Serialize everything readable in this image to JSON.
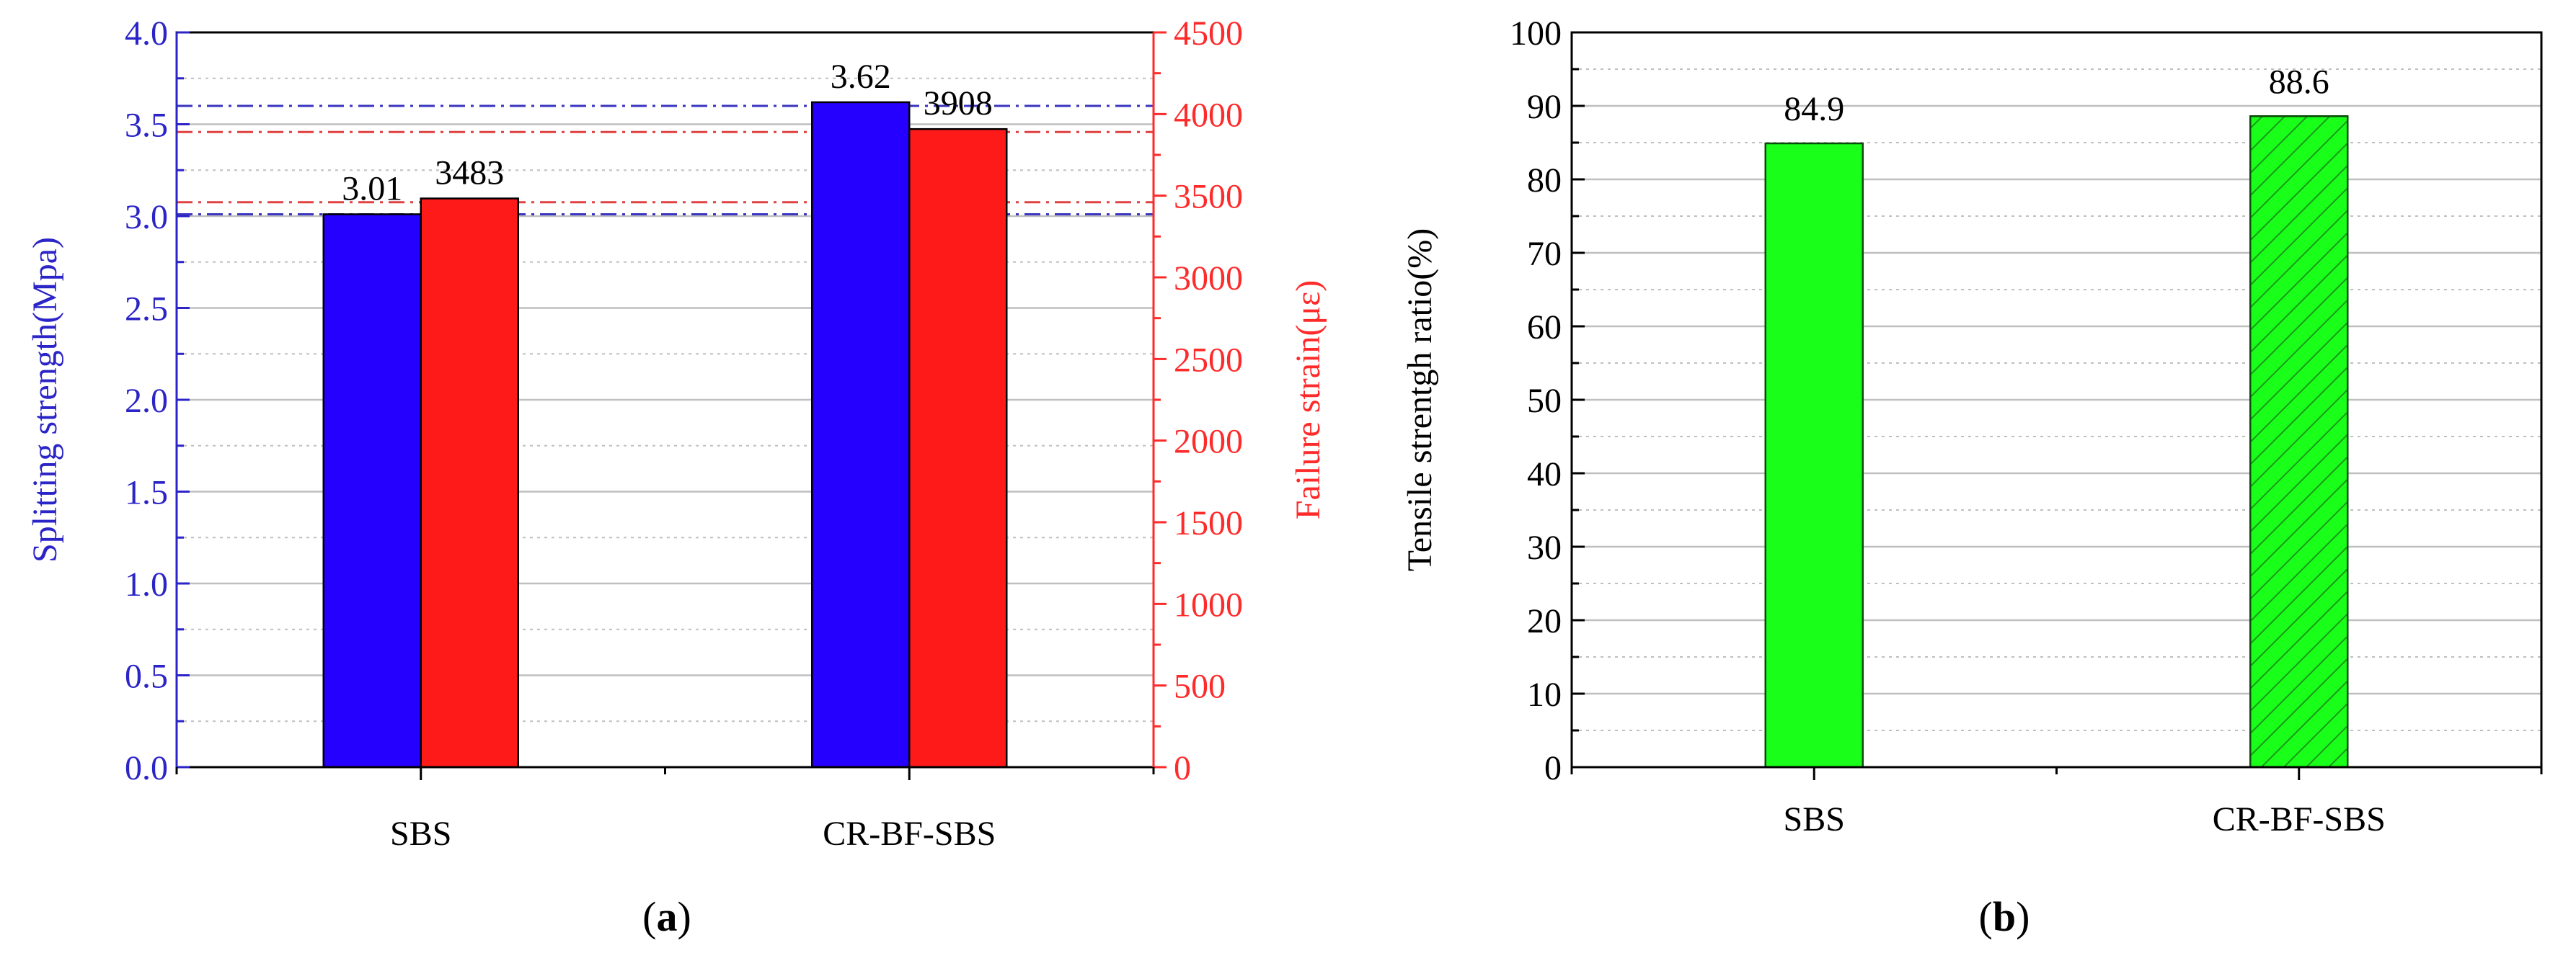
{
  "panels": [
    {
      "caption_open": "(",
      "caption_letter": "a",
      "caption_close": ")"
    },
    {
      "caption_open": "(",
      "caption_letter": "b",
      "caption_close": ")"
    }
  ],
  "colors": {
    "left_axis": "#2b24c7",
    "right_axis": "#ff2a2a",
    "bar_blue": "#2600ff",
    "bar_red": "#ff1a1a",
    "bar_green": "#1aff1a",
    "bar_green_hatch": "#1a9a1a",
    "ref_line_blue": "#3a35c0",
    "ref_line_red": "#e04040",
    "grid": "#bfbfbf"
  },
  "chart_data": [
    {
      "type": "bar",
      "categories": [
        "SBS",
        "CR-BF-SBS"
      ],
      "series": [
        {
          "name": "",
          "axis": "left",
          "values": [
            3.01,
            3.62
          ],
          "value_labels": [
            "3.01",
            "3.62"
          ],
          "color": "#2600ff"
        },
        {
          "name": "",
          "axis": "right",
          "values": [
            3483,
            3908
          ],
          "value_labels": [
            "3483",
            "3908"
          ],
          "color": "#ff1a1a"
        }
      ],
      "ylabel_left": "Splitting strength(Mpa)",
      "ylabel_right": "Failure strain(με)",
      "ylim_left": [
        0,
        4.0
      ],
      "ylim_right": [
        0,
        4500
      ],
      "yticks_left": [
        "0.0",
        "0.5",
        "1.0",
        "1.5",
        "2.0",
        "2.5",
        "3.0",
        "3.5",
        "4.0"
      ],
      "yticks_right": [
        "0",
        "500",
        "1000",
        "1500",
        "2000",
        "2500",
        "3000",
        "3500",
        "4000",
        "4500"
      ],
      "reference_lines_left": [
        3.01,
        3.6
      ],
      "reference_lines_right": [
        3460,
        3890
      ],
      "grid": true
    },
    {
      "type": "bar",
      "categories": [
        "SBS",
        "CR-BF-SBS"
      ],
      "series": [
        {
          "name": "",
          "values": [
            84.9,
            88.6
          ],
          "value_labels": [
            "84.9",
            "88.6"
          ],
          "color": "#1aff1a",
          "hatched": [
            false,
            true
          ]
        }
      ],
      "ylabel": "Tensile strentgh ratio(%)",
      "ylim": [
        0,
        100
      ],
      "yticks": [
        "0",
        "10",
        "20",
        "30",
        "40",
        "50",
        "60",
        "70",
        "80",
        "90",
        "100"
      ],
      "grid": true
    }
  ]
}
